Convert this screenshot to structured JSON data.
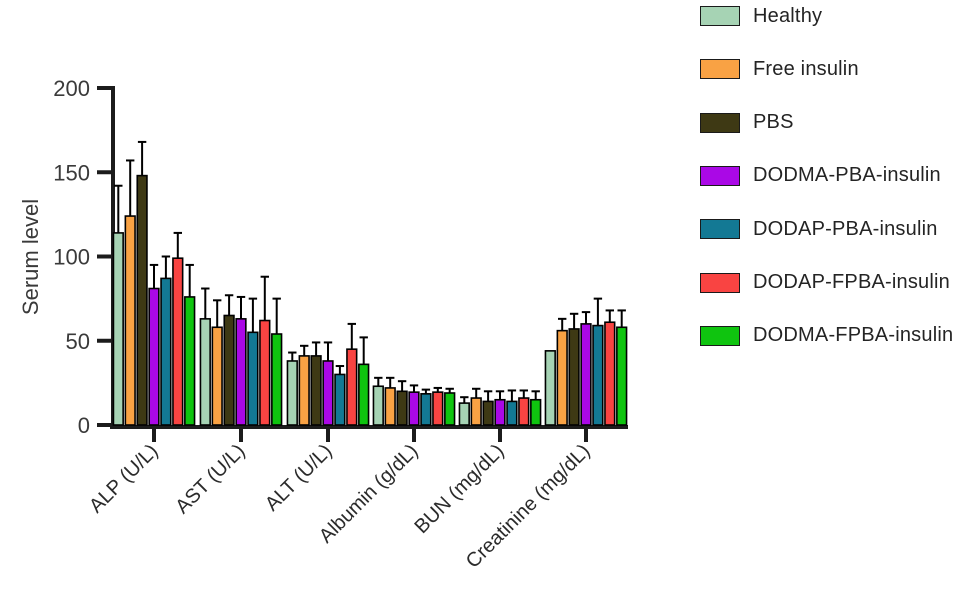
{
  "figure": {
    "background": "#ffffff",
    "axis_color": "#1c1c1c",
    "tick_label_color": "#3a3a3a",
    "category_label_color": "#2b2b2b"
  },
  "chart_data": {
    "type": "bar",
    "title": "",
    "xlabel": "",
    "ylabel": "Serum level",
    "ylim": [
      0,
      200
    ],
    "yticks": [
      0,
      50,
      100,
      150,
      200
    ],
    "grid": false,
    "error_bars": "upper",
    "legend_position": "right",
    "bar_outline_color": "#000000",
    "categories": [
      "ALP (U/L)",
      "AST (U/L)",
      "ALT (U/L)",
      "Albumin (g/dL)",
      "BUN (mg/dL)",
      "Creatinine (mg/dL)"
    ],
    "series": [
      {
        "name": "Healthy",
        "color": "#a6d3b4",
        "values": [
          114,
          63,
          38,
          23,
          13,
          44
        ],
        "errors": [
          28,
          18,
          5,
          5,
          3.5,
          0
        ]
      },
      {
        "name": "Free insulin",
        "color": "#f9a244",
        "values": [
          124,
          58,
          41,
          22,
          16,
          56
        ],
        "errors": [
          33,
          16,
          6,
          6,
          5.5,
          7
        ]
      },
      {
        "name": "PBS",
        "color": "#3e3914",
        "values": [
          148,
          65,
          41,
          20,
          14,
          57
        ],
        "errors": [
          20,
          12,
          8,
          6,
          6,
          9
        ]
      },
      {
        "name": "DODMA-PBA-insulin",
        "color": "#aa08e6",
        "values": [
          81,
          63,
          38,
          19.5,
          15,
          60
        ],
        "errors": [
          14,
          13,
          11,
          4,
          5,
          7
        ]
      },
      {
        "name": "DODAP-PBA-insulin",
        "color": "#137994",
        "values": [
          87,
          55,
          30,
          18.5,
          14,
          59
        ],
        "errors": [
          13,
          20,
          5,
          2.5,
          6.5,
          16
        ]
      },
      {
        "name": "DODAP-FPBA-insulin",
        "color": "#f94442",
        "values": [
          99,
          62,
          45,
          19.5,
          16,
          61
        ],
        "errors": [
          15,
          26,
          15,
          2.5,
          4.5,
          7
        ]
      },
      {
        "name": "DODMA-FPBA-insulin",
        "color": "#0fc40f",
        "values": [
          76,
          54,
          36,
          19,
          15,
          58
        ],
        "errors": [
          19,
          21,
          16,
          2.5,
          5,
          10
        ]
      }
    ]
  }
}
